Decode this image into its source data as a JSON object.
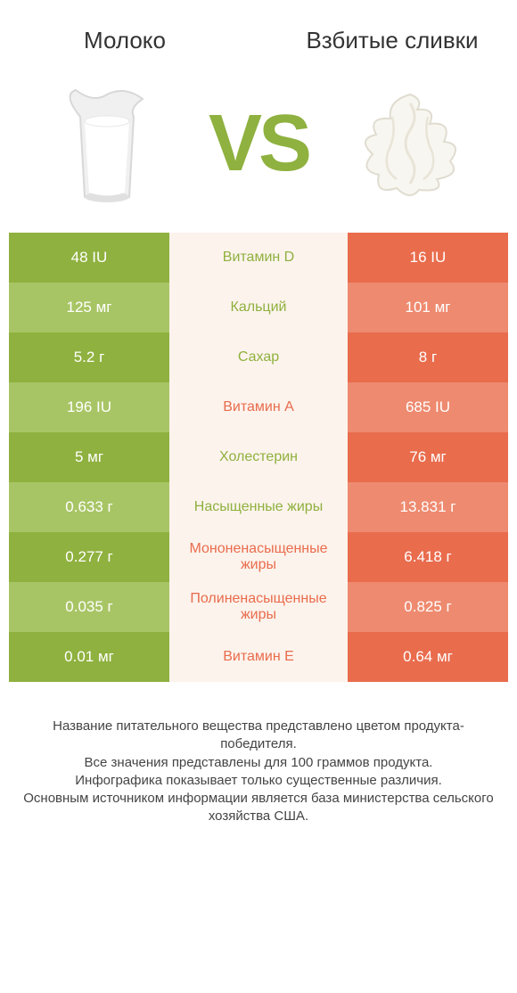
{
  "colors": {
    "green_dark": "#8fb13f",
    "green_light": "#a8c565",
    "orange_dark": "#e96c4d",
    "orange_light": "#ee8a6f",
    "mid_bg": "#fcf3ec",
    "text_green": "#8fb13f",
    "text_orange": "#e96c4d"
  },
  "header": {
    "left_title": "Молоко",
    "right_title": "Взбитые сливки",
    "vs": "VS"
  },
  "rows": [
    {
      "left": "48 IU",
      "label": "Витамин D",
      "right": "16 IU",
      "winner": "left"
    },
    {
      "left": "125 мг",
      "label": "Кальций",
      "right": "101 мг",
      "winner": "left"
    },
    {
      "left": "5.2 г",
      "label": "Сахар",
      "right": "8 г",
      "winner": "left"
    },
    {
      "left": "196 IU",
      "label": "Витамин A",
      "right": "685 IU",
      "winner": "right"
    },
    {
      "left": "5 мг",
      "label": "Холестерин",
      "right": "76 мг",
      "winner": "left"
    },
    {
      "left": "0.633 г",
      "label": "Насыщенные жиры",
      "right": "13.831 г",
      "winner": "left"
    },
    {
      "left": "0.277 г",
      "label": "Мононенасыщенные жиры",
      "right": "6.418 г",
      "winner": "right"
    },
    {
      "left": "0.035 г",
      "label": "Полиненасыщенные жиры",
      "right": "0.825 г",
      "winner": "right"
    },
    {
      "left": "0.01 мг",
      "label": "Витамин E",
      "right": "0.64 мг",
      "winner": "right"
    }
  ],
  "footer": {
    "line1": "Название питательного вещества представлено цветом продукта-победителя.",
    "line2": "Все значения представлены для 100 граммов продукта.",
    "line3": "Инфографика показывает только существенные различия.",
    "line4": "Основным источником информации является база министерства сельского хозяйства США."
  }
}
